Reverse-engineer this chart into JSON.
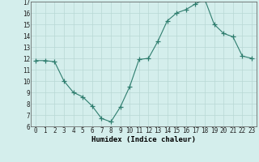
{
  "x": [
    0,
    1,
    2,
    3,
    4,
    5,
    6,
    7,
    8,
    9,
    10,
    11,
    12,
    13,
    14,
    15,
    16,
    17,
    18,
    19,
    20,
    21,
    22,
    23
  ],
  "y": [
    11.8,
    11.8,
    11.7,
    10.0,
    9.0,
    8.6,
    7.8,
    6.7,
    6.4,
    7.7,
    9.5,
    11.9,
    12.0,
    13.5,
    15.3,
    16.0,
    16.3,
    16.8,
    17.2,
    15.0,
    14.2,
    13.9,
    12.2,
    12.0
  ],
  "line_color": "#2e7d6e",
  "marker": "+",
  "marker_size": 4,
  "bg_color": "#d4eeec",
  "grid_color": "#b8d8d4",
  "xlabel": "Humidex (Indice chaleur)",
  "ylim": [
    6,
    17
  ],
  "xlim": [
    -0.5,
    23.5
  ],
  "yticks": [
    6,
    7,
    8,
    9,
    10,
    11,
    12,
    13,
    14,
    15,
    16,
    17
  ],
  "xticks": [
    0,
    1,
    2,
    3,
    4,
    5,
    6,
    7,
    8,
    9,
    10,
    11,
    12,
    13,
    14,
    15,
    16,
    17,
    18,
    19,
    20,
    21,
    22,
    23
  ],
  "tick_fontsize": 5.5,
  "xlabel_fontsize": 6.5
}
